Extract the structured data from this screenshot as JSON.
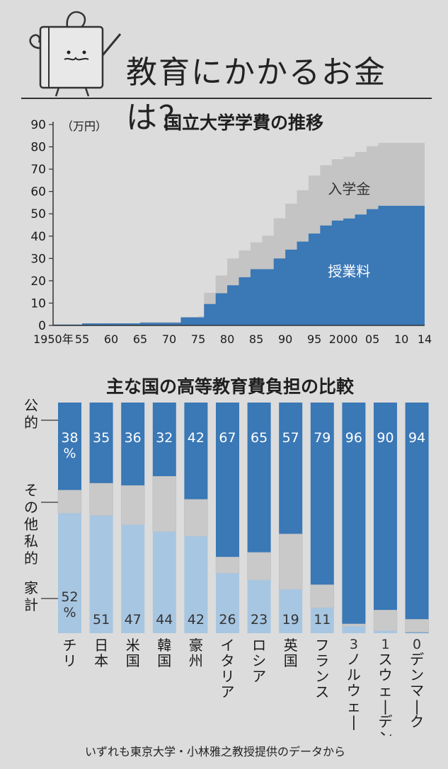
{
  "header": {
    "title": "教育にかかるお金は？"
  },
  "chart_data": [
    {
      "type": "area",
      "title": "国立大学学費の推移",
      "ylabel": "（万円）",
      "ylim": [
        0,
        90
      ],
      "y_ticks": [
        "90",
        "80",
        "70",
        "60",
        "50",
        "40",
        "30",
        "20",
        "10",
        "0"
      ],
      "x_tick_labels": [
        "1950年",
        "55",
        "60",
        "65",
        "70",
        "75",
        "80",
        "85",
        "90",
        "95",
        "2000",
        "05",
        "10",
        "14"
      ],
      "x_tick_years": [
        1950,
        1955,
        1960,
        1965,
        1970,
        1975,
        1980,
        1985,
        1990,
        1995,
        2000,
        2005,
        2010,
        2014
      ],
      "x": [
        1950,
        1955,
        1960,
        1965,
        1970,
        1972,
        1975,
        1976,
        1978,
        1980,
        1982,
        1984,
        1986,
        1988,
        1990,
        1992,
        1994,
        1996,
        1998,
        2000,
        2002,
        2004,
        2006,
        2010,
        2014
      ],
      "series": [
        {
          "name": "授業料",
          "values": [
            0.4,
            0.9,
            0.9,
            1.2,
            1.2,
            3.6,
            3.6,
            9.6,
            14.4,
            18,
            21.6,
            25.2,
            25.2,
            30,
            33.96,
            37.56,
            41.16,
            44.76,
            46.98,
            47.88,
            49.68,
            52.08,
            53.58,
            53.58,
            53.58
          ]
        },
        {
          "name": "入学金",
          "values": [
            0,
            0,
            0.1,
            0.4,
            0.4,
            0.2,
            0.5,
            5,
            8,
            12,
            12,
            12,
            15,
            18,
            20.6,
            23,
            26,
            27,
            27.5,
            27.7,
            28,
            28.2,
            28.2,
            28.2,
            28.2
          ]
        }
      ]
    },
    {
      "type": "bar",
      "stacked": true,
      "title": "主な国の高等教育費負担の比較",
      "categories": [
        "チリ",
        "日本",
        "米国",
        "韓国",
        "豪州",
        "イタリア",
        "ロシア",
        "英国",
        "フランス",
        "ノルウェー",
        "スウェーデン",
        "デンマーク"
      ],
      "series_labels": {
        "public": "公的",
        "other": "その他私的",
        "household": "家計"
      },
      "series": [
        {
          "name": "公的",
          "values": [
            38,
            35,
            36,
            32,
            42,
            67,
            65,
            57,
            79,
            96,
            90,
            94
          ]
        },
        {
          "name": "その他私的",
          "values": [
            10,
            14,
            17,
            24,
            16,
            7,
            12,
            24,
            10,
            1,
            9,
            6
          ]
        },
        {
          "name": "家計",
          "values": [
            52,
            51,
            47,
            44,
            42,
            26,
            23,
            19,
            11,
            3,
            1,
            0
          ]
        }
      ],
      "public_labels": [
        "38\n%",
        "35",
        "36",
        "32",
        "42",
        "67",
        "65",
        "57",
        "79",
        "96",
        "90",
        "94"
      ],
      "household_labels": [
        "52\n%",
        "51",
        "47",
        "44",
        "42",
        "26",
        "23",
        "19",
        "11",
        "3",
        "1",
        "0"
      ]
    }
  ],
  "footnote": "いずれも東京大学・小林雅之教授提供のデータから",
  "colors": {
    "public": "#3a78b6",
    "other": "#c9c9c9",
    "household": "#a7c6e2",
    "tuition": "#3a78b6",
    "entrance": "#c4c4c4"
  }
}
